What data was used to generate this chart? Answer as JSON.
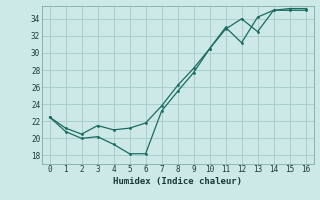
{
  "xlabel": "Humidex (Indice chaleur)",
  "background_color": "#cce9e7",
  "grid_color": "#aacfcd",
  "line_color": "#1a6b60",
  "xlim": [
    -0.5,
    16.5
  ],
  "ylim": [
    17.0,
    35.5
  ],
  "yticks": [
    18,
    20,
    22,
    24,
    26,
    28,
    30,
    32,
    34
  ],
  "xticks": [
    0,
    1,
    2,
    3,
    4,
    5,
    6,
    7,
    8,
    9,
    10,
    11,
    12,
    13,
    14,
    15,
    16
  ],
  "line1_x": [
    0,
    1,
    2,
    3,
    4,
    5,
    6,
    7,
    8,
    9,
    10,
    11,
    12,
    13,
    14,
    15,
    16
  ],
  "line1_y": [
    22.5,
    20.8,
    20.0,
    20.2,
    19.3,
    18.2,
    18.2,
    23.2,
    25.5,
    27.7,
    30.5,
    33.0,
    31.2,
    34.2,
    35.0,
    35.0,
    35.0
  ],
  "line2_x": [
    0,
    1,
    2,
    3,
    4,
    5,
    6,
    7,
    8,
    9,
    10,
    11,
    12,
    13,
    14,
    15,
    16
  ],
  "line2_y": [
    22.5,
    21.2,
    20.5,
    21.5,
    21.0,
    21.2,
    21.8,
    23.8,
    26.2,
    28.2,
    30.5,
    32.8,
    34.0,
    32.5,
    35.0,
    35.2,
    35.2
  ]
}
